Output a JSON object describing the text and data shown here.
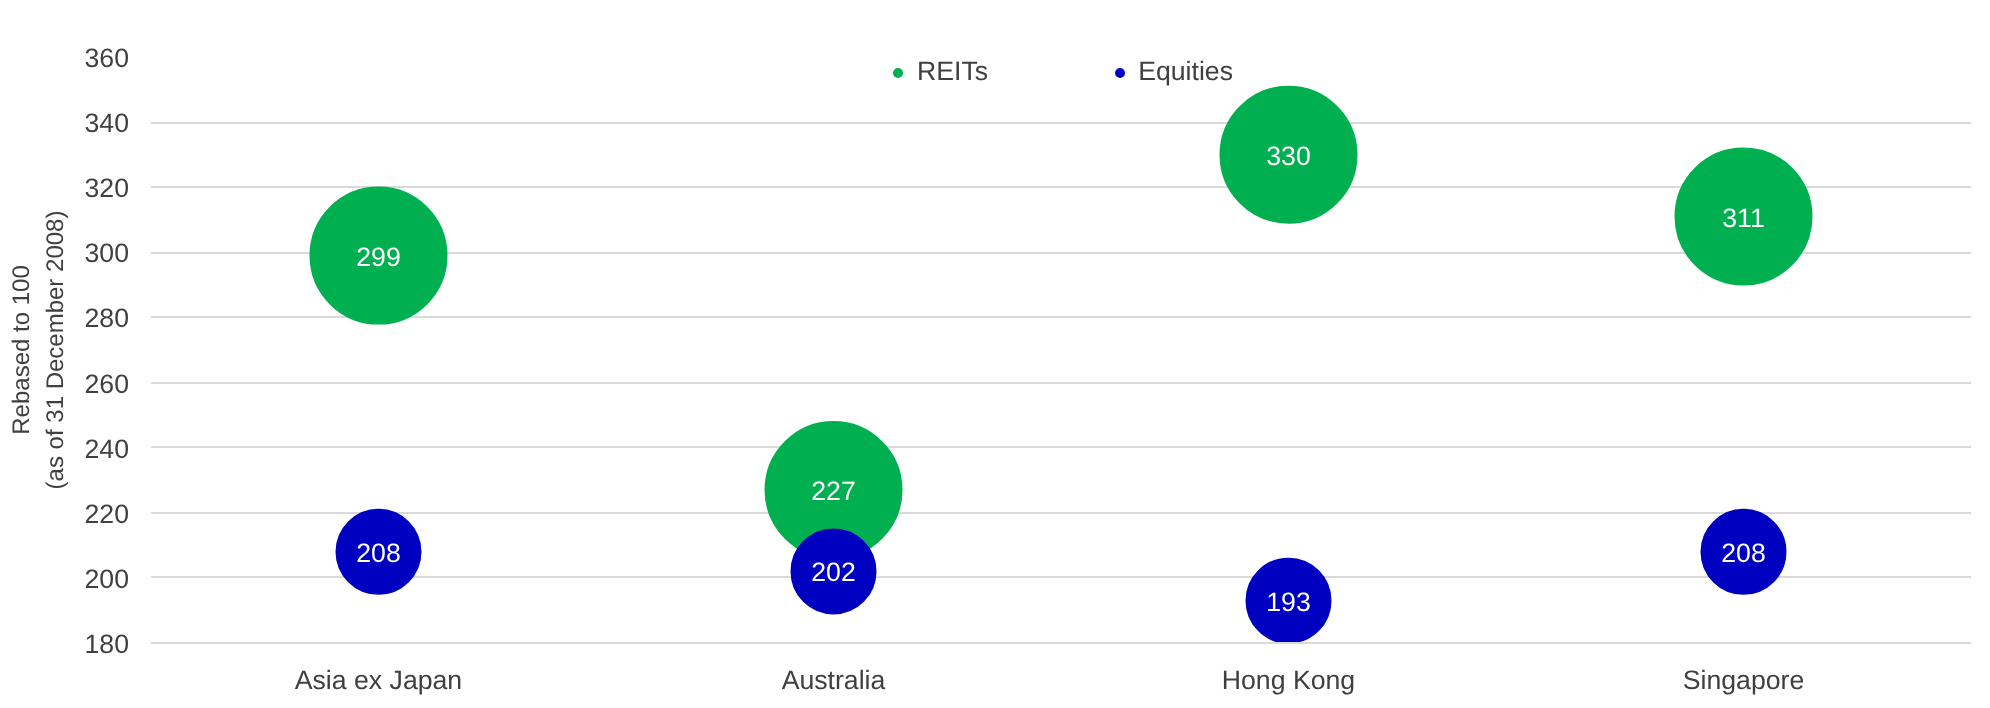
{
  "chart_data": {
    "type": "scatter",
    "ylabel": "Rebased to 100\n(as of 31 December 2008)",
    "categories": [
      "Asia ex Japan",
      "Australia",
      "Hong Kong",
      "Singapore"
    ],
    "series": [
      {
        "name": "REITs",
        "color": "#00b050",
        "values": [
          299,
          227,
          330,
          311
        ]
      },
      {
        "name": "Equities",
        "color": "#0000c0",
        "values": [
          208,
          202,
          193,
          208
        ]
      }
    ],
    "ylim": [
      180,
      360
    ],
    "yticks": [
      180,
      200,
      220,
      240,
      260,
      280,
      300,
      320,
      340,
      360
    ],
    "grid": "y",
    "legend": "top",
    "marker": "circle",
    "data_labels": true
  }
}
